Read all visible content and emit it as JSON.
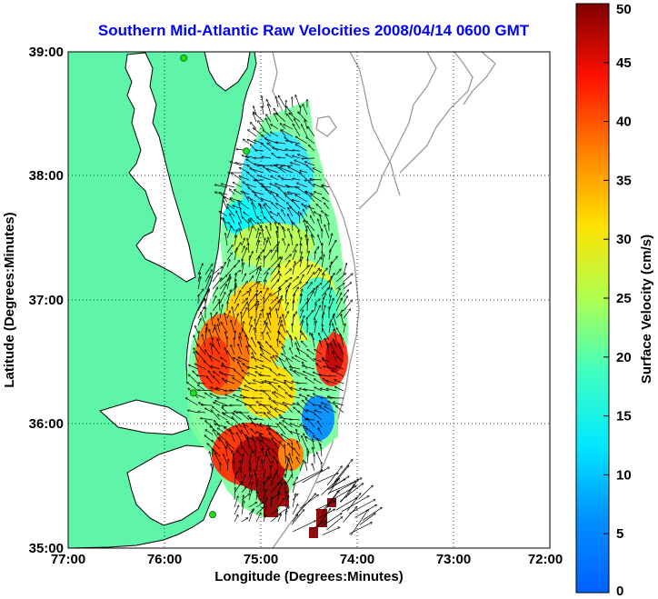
{
  "title": "Southern Mid-Atlantic Raw Velocities 2008/04/14 0600 GMT",
  "axes": {
    "xlabel": "Longitude (Degrees:Minutes)",
    "ylabel": "Latitude (Degrees:Minutes)",
    "xticks": [
      "77:00",
      "76:00",
      "75:00",
      "74:00",
      "73:00",
      "72:00"
    ],
    "yticks": [
      "39:00",
      "38:00",
      "37:00",
      "36:00",
      "35:00"
    ],
    "xrange_deg_west": [
      77,
      72
    ],
    "yrange_deg_north": [
      35,
      39
    ],
    "grid": "dotted"
  },
  "colorbar": {
    "label": "Surface Velocity (cm/s)",
    "range": [
      0,
      50
    ],
    "ticks": [
      "0",
      "5",
      "10",
      "15",
      "20",
      "25",
      "30",
      "35",
      "40",
      "45",
      "50"
    ],
    "colormap": "jet"
  },
  "colors": {
    "land": "#5ff5a8",
    "water": "#ffffff",
    "coast": "#000000",
    "bathymetry": "#9a9a9a",
    "title": "#0000ff",
    "stations": "#22dd22"
  },
  "stations": [
    {
      "lon": -75.8,
      "lat": 38.95
    },
    {
      "lon": -75.15,
      "lat": 38.2
    },
    {
      "lon": -75.7,
      "lat": 36.25
    },
    {
      "lon": -75.5,
      "lat": 35.27
    }
  ]
}
